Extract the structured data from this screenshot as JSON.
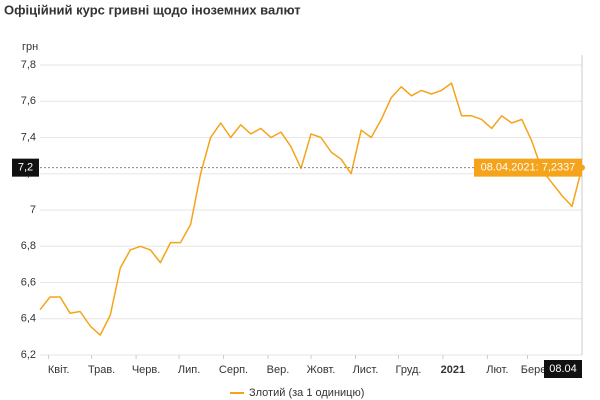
{
  "chart_data": {
    "type": "line",
    "title": "Офіційний курс гривні щодо іноземних валют",
    "y_label": "грн",
    "x": [
      "2020-03-26",
      "2020-04-02",
      "2020-04-09",
      "2020-04-16",
      "2020-04-23",
      "2020-04-30",
      "2020-05-07",
      "2020-05-14",
      "2020-05-21",
      "2020-05-28",
      "2020-06-04",
      "2020-06-11",
      "2020-06-18",
      "2020-06-25",
      "2020-07-02",
      "2020-07-09",
      "2020-07-16",
      "2020-07-23",
      "2020-07-30",
      "2020-08-06",
      "2020-08-13",
      "2020-08-20",
      "2020-08-27",
      "2020-09-03",
      "2020-09-10",
      "2020-09-17",
      "2020-09-24",
      "2020-10-01",
      "2020-10-08",
      "2020-10-15",
      "2020-10-22",
      "2020-10-29",
      "2020-11-05",
      "2020-11-12",
      "2020-11-19",
      "2020-11-26",
      "2020-12-03",
      "2020-12-10",
      "2020-12-17",
      "2020-12-24",
      "2020-12-31",
      "2021-01-07",
      "2021-01-14",
      "2021-01-21",
      "2021-01-28",
      "2021-02-04",
      "2021-02-11",
      "2021-02-18",
      "2021-02-25",
      "2021-03-04",
      "2021-03-11",
      "2021-03-18",
      "2021-03-25",
      "2021-04-01",
      "2021-04-08"
    ],
    "series": [
      {
        "name": "Злотий (за 1 одиницю)",
        "color": "#f5a31a",
        "values": [
          6.45,
          6.52,
          6.52,
          6.43,
          6.44,
          6.36,
          6.31,
          6.42,
          6.68,
          6.78,
          6.8,
          6.78,
          6.71,
          6.82,
          6.82,
          6.92,
          7.2,
          7.4,
          7.48,
          7.4,
          7.47,
          7.42,
          7.45,
          7.4,
          7.43,
          7.35,
          7.23,
          7.42,
          7.4,
          7.32,
          7.28,
          7.2,
          7.44,
          7.4,
          7.5,
          7.62,
          7.68,
          7.63,
          7.66,
          7.64,
          7.66,
          7.7,
          7.52,
          7.52,
          7.5,
          7.45,
          7.52,
          7.48,
          7.5,
          7.38,
          7.22,
          7.15,
          7.08,
          7.02,
          7.2337
        ]
      }
    ],
    "xlim": [
      "2020-03-26",
      "2021-04-08"
    ],
    "xticks": [
      {
        "value": "2020-04-01",
        "label": "Квіт."
      },
      {
        "value": "2020-05-01",
        "label": "Трав."
      },
      {
        "value": "2020-06-01",
        "label": "Черв."
      },
      {
        "value": "2020-07-01",
        "label": "Лип."
      },
      {
        "value": "2020-08-01",
        "label": "Серп."
      },
      {
        "value": "2020-09-01",
        "label": "Вер."
      },
      {
        "value": "2020-10-01",
        "label": "Жовт."
      },
      {
        "value": "2020-11-01",
        "label": "Лист."
      },
      {
        "value": "2020-12-01",
        "label": "Груд."
      },
      {
        "value": "2021-01-01",
        "label": "2021"
      },
      {
        "value": "2021-02-01",
        "label": "Лют."
      },
      {
        "value": "2021-03-01",
        "label": "Берез."
      }
    ],
    "ylim": [
      6.2,
      7.8
    ],
    "yticks": [
      {
        "value": 6.2,
        "label": "6,2"
      },
      {
        "value": 6.4,
        "label": "6,4"
      },
      {
        "value": 6.6,
        "label": "6,6"
      },
      {
        "value": 6.8,
        "label": "6,8"
      },
      7,
      {
        "value": 7.2,
        "label": "7,2"
      },
      {
        "value": 7.4,
        "label": "7,4"
      },
      {
        "value": 7.6,
        "label": "7,6"
      },
      {
        "value": 7.8,
        "label": "7,8"
      }
    ],
    "grid": true,
    "crosshair": {
      "y_label": "7,2",
      "x_label": "08.04",
      "tooltip": "08.04.2021: 7,2337"
    }
  }
}
